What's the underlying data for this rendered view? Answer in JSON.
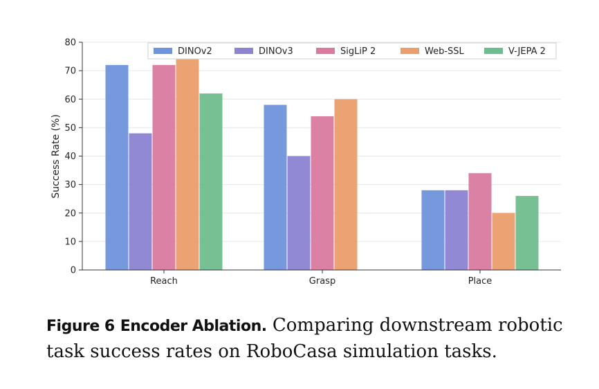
{
  "chart_data": {
    "type": "bar",
    "title": "",
    "xlabel": "",
    "ylabel": "Success Rate (%)",
    "ylim": [
      0,
      80
    ],
    "yticks": [
      "0",
      "10",
      "20",
      "30",
      "40",
      "50",
      "60",
      "70",
      "80"
    ],
    "categories": [
      "Reach",
      "Grasp",
      "Place"
    ],
    "grid": true,
    "legend_position": "top-right",
    "series": [
      {
        "name": "DINOv2",
        "color": "#6f94dc",
        "values": [
          72,
          58,
          28
        ]
      },
      {
        "name": "DINOv3",
        "color": "#8c83d2",
        "values": [
          48,
          40,
          28
        ]
      },
      {
        "name": "SigLiP 2",
        "color": "#d97b9f",
        "values": [
          72,
          54,
          34
        ]
      },
      {
        "name": "Web-SSL",
        "color": "#ea9e6c",
        "values": [
          74,
          60,
          20
        ]
      },
      {
        "name": "V-JEPA 2",
        "color": "#6fbd8e",
        "values": [
          62,
          null,
          26
        ]
      }
    ]
  },
  "caption": {
    "label": "Figure 6",
    "title": "Encoder Ablation.",
    "text": "Comparing downstream robotic task success rates on RoboCasa simulation tasks."
  }
}
